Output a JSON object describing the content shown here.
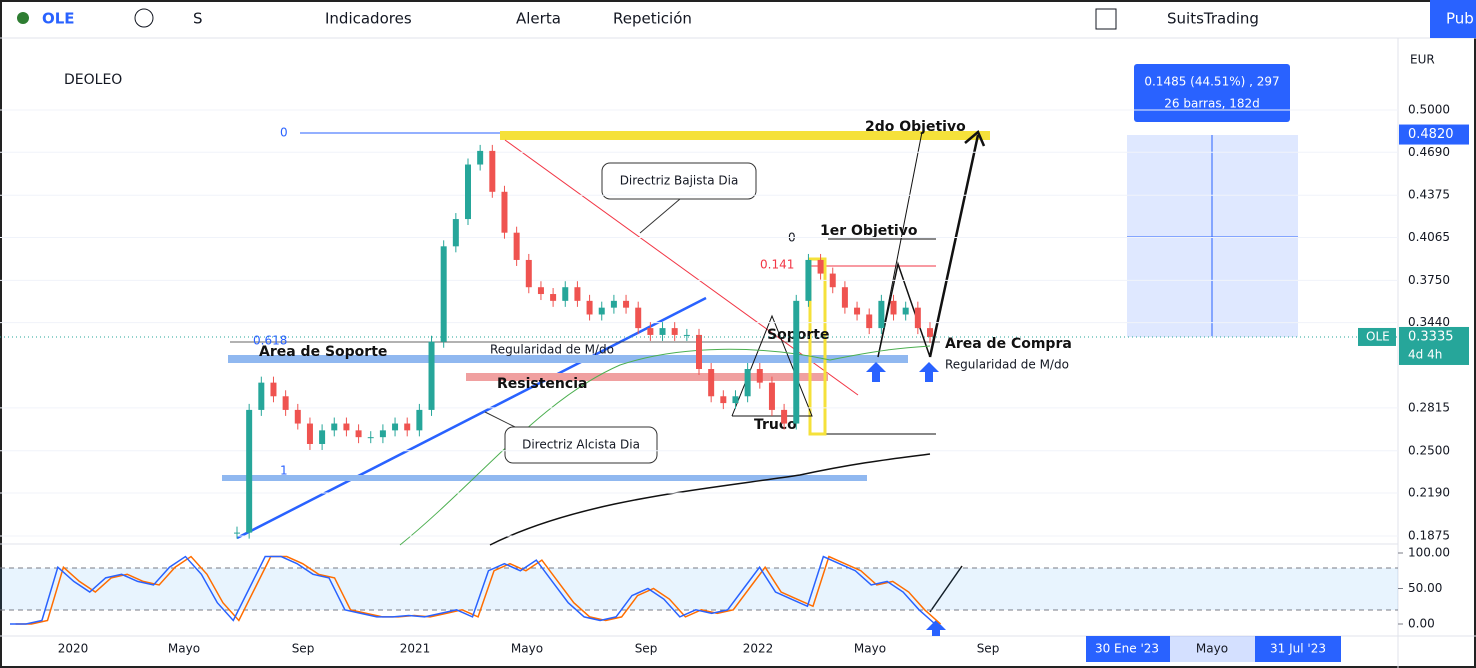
{
  "toolbar": {
    "symbol": "OLE",
    "interval": "S",
    "indicators": "Indicadores",
    "alert": "Alerta",
    "replay": "Repetición",
    "user": "SuitsTrading",
    "publish": "Pub"
  },
  "chart": {
    "symbol_name": "DEOLEO",
    "currency": "EUR",
    "price_ticks": [
      {
        "value": 0.5,
        "label": "0.5000"
      },
      {
        "value": 0.469,
        "label": "0.4690"
      },
      {
        "value": 0.4375,
        "label": "0.4375"
      },
      {
        "value": 0.4065,
        "label": "0.4065"
      },
      {
        "value": 0.375,
        "label": "0.3750"
      },
      {
        "value": 0.344,
        "label": "0.3440"
      },
      {
        "value": 0.2815,
        "label": "0.2815"
      },
      {
        "value": 0.25,
        "label": "0.2500"
      },
      {
        "value": 0.219,
        "label": "0.2190"
      },
      {
        "value": 0.1875,
        "label": "0.1875"
      }
    ],
    "price_tags": {
      "target": {
        "value": 0.482,
        "label": "0.4820"
      },
      "symbol": "OLE",
      "last": {
        "value": 0.3335,
        "label": "0.3335"
      },
      "countdown": "4d 4h"
    },
    "measure": {
      "change": "0.1485 (44.51%) , 297",
      "span": "26 barras, 182d"
    },
    "annotations": {
      "target2": "2do Objetivo",
      "target1": "1er Objetivo",
      "down_trend": "Directriz Bajista Dia",
      "up_trend": "Directriz Alcista Dia",
      "support_area": "Area de Soporte",
      "regularity_1": "Regularidad de M/do",
      "regularity_2": "Regularidad de M/do",
      "resistance": "Resistencia",
      "support": "Soporte",
      "trick": "Truco",
      "buy_area": "Area de Compra"
    },
    "fib_labels": {
      "big_0": "0",
      "big_618": "0.618",
      "big_1": "1",
      "small_0": "0",
      "small_141": "0.141"
    },
    "closes": [
      0.19,
      0.28,
      0.3,
      0.29,
      0.28,
      0.27,
      0.255,
      0.265,
      0.27,
      0.265,
      0.26,
      0.26,
      0.265,
      0.27,
      0.265,
      0.28,
      0.33,
      0.4,
      0.42,
      0.46,
      0.47,
      0.44,
      0.41,
      0.39,
      0.37,
      0.365,
      0.36,
      0.37,
      0.36,
      0.35,
      0.355,
      0.36,
      0.355,
      0.34,
      0.335,
      0.34,
      0.335,
      0.335,
      0.31,
      0.29,
      0.285,
      0.29,
      0.31,
      0.3,
      0.28,
      0.27,
      0.36,
      0.39,
      0.38,
      0.37,
      0.355,
      0.35,
      0.34,
      0.36,
      0.35,
      0.355,
      0.34,
      0.3335
    ],
    "oscillator": {
      "ticks": [
        {
          "value": 100,
          "label": "100.00"
        },
        {
          "value": 50,
          "label": "50.00"
        },
        {
          "value": 0,
          "label": "0.00"
        }
      ],
      "values": [
        0,
        0,
        5,
        80,
        60,
        45,
        65,
        70,
        60,
        55,
        80,
        95,
        70,
        30,
        5,
        50,
        95,
        95,
        85,
        70,
        65,
        20,
        15,
        10,
        10,
        12,
        10,
        15,
        20,
        10,
        75,
        85,
        75,
        90,
        60,
        30,
        10,
        5,
        10,
        40,
        50,
        35,
        10,
        20,
        15,
        20,
        50,
        80,
        45,
        35,
        25,
        95,
        85,
        75,
        55,
        60,
        45,
        20,
        0
      ]
    },
    "time_labels": [
      "2020",
      "Mayo",
      "Sep",
      "2021",
      "Mayo",
      "Sep",
      "2022",
      "Mayo",
      "Sep"
    ],
    "range_labels": [
      "30 Ene '23",
      "Mayo",
      "31 Jul '23"
    ]
  }
}
